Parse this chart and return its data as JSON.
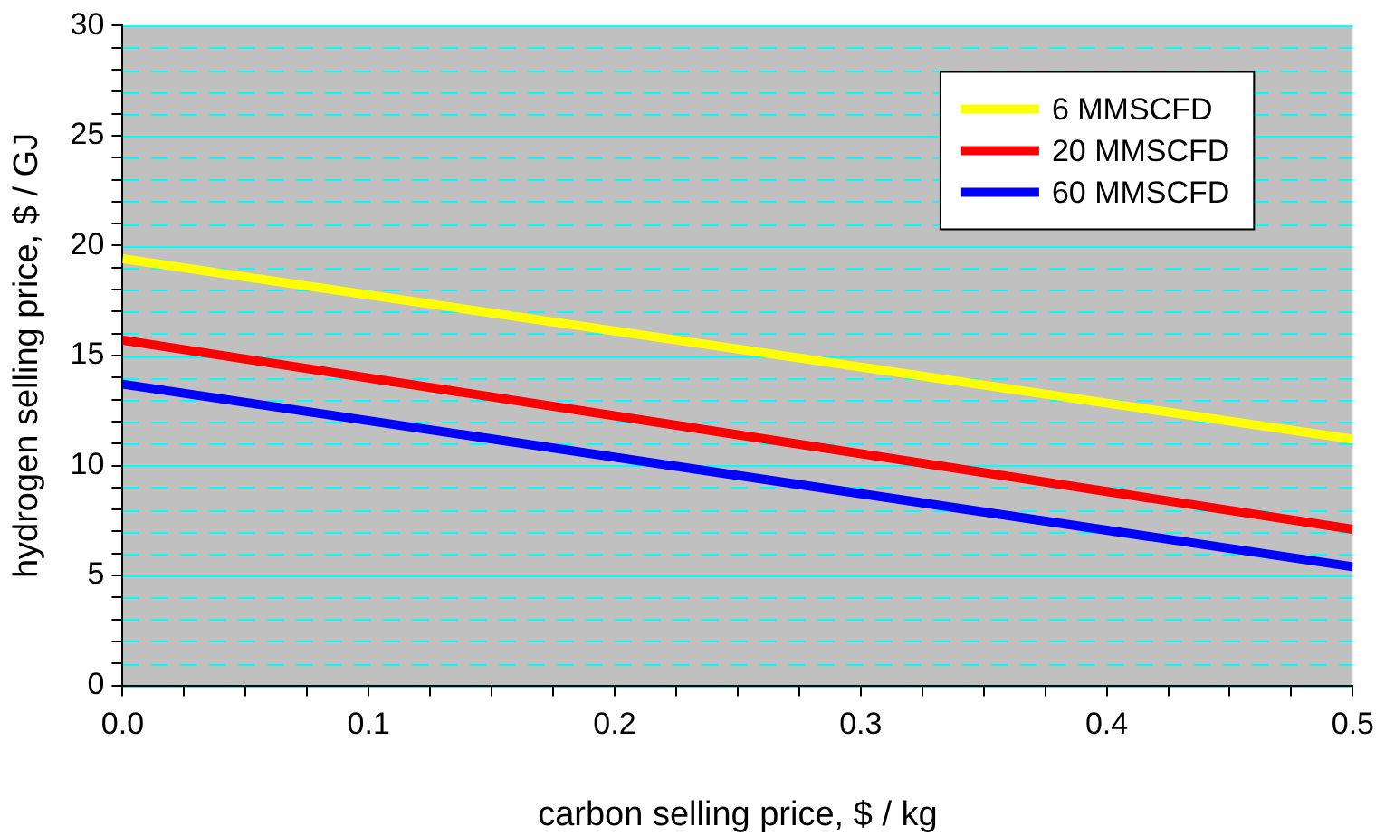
{
  "chart_data": {
    "type": "line",
    "xlabel": "carbon selling price, $ / kg",
    "ylabel": "hydrogen selling price, $ / GJ",
    "x": [
      0,
      0.5
    ],
    "series": [
      {
        "name": "6 MMSCFD",
        "color": "#ffff00",
        "values": [
          19.4,
          11.2
        ]
      },
      {
        "name": "20 MMSCFD",
        "color": "#ff0000",
        "values": [
          15.7,
          7.1
        ]
      },
      {
        "name": "60 MMSCFD",
        "color": "#0000ff",
        "values": [
          13.7,
          5.4
        ]
      }
    ],
    "xlim": [
      0,
      0.5
    ],
    "xticks": [
      {
        "value": 0,
        "label": "0.0"
      },
      {
        "value": 0.025,
        "label": null
      },
      {
        "value": 0.05,
        "label": null
      },
      {
        "value": 0.075,
        "label": null
      },
      {
        "value": 0.1,
        "label": "0.1"
      },
      {
        "value": 0.125,
        "label": null
      },
      {
        "value": 0.15,
        "label": null
      },
      {
        "value": 0.175,
        "label": null
      },
      {
        "value": 0.2,
        "label": "0.2"
      },
      {
        "value": 0.225,
        "label": null
      },
      {
        "value": 0.25,
        "label": null
      },
      {
        "value": 0.275,
        "label": null
      },
      {
        "value": 0.3,
        "label": "0.3"
      },
      {
        "value": 0.325,
        "label": null
      },
      {
        "value": 0.35,
        "label": null
      },
      {
        "value": 0.375,
        "label": null
      },
      {
        "value": 0.4,
        "label": "0.4"
      },
      {
        "value": 0.425,
        "label": null
      },
      {
        "value": 0.45,
        "label": null
      },
      {
        "value": 0.475,
        "label": null
      },
      {
        "value": 0.5,
        "label": "0.5"
      }
    ],
    "ylim": [
      0,
      30
    ],
    "yticks": [
      0,
      {
        "value": 1,
        "label": null
      },
      {
        "value": 2,
        "label": null
      },
      {
        "value": 3,
        "label": null
      },
      {
        "value": 4,
        "label": null
      },
      5,
      {
        "value": 6,
        "label": null
      },
      {
        "value": 7,
        "label": null
      },
      {
        "value": 8,
        "label": null
      },
      {
        "value": 9,
        "label": null
      },
      10,
      {
        "value": 11,
        "label": null
      },
      {
        "value": 12,
        "label": null
      },
      {
        "value": 13,
        "label": null
      },
      {
        "value": 14,
        "label": null
      },
      15,
      {
        "value": 16,
        "label": null
      },
      {
        "value": 17,
        "label": null
      },
      {
        "value": 18,
        "label": null
      },
      {
        "value": 19,
        "label": null
      },
      20,
      {
        "value": 21,
        "label": null
      },
      {
        "value": 22,
        "label": null
      },
      {
        "value": 23,
        "label": null
      },
      {
        "value": 24,
        "label": null
      },
      25,
      {
        "value": 26,
        "label": null
      },
      {
        "value": 27,
        "label": null
      },
      {
        "value": 28,
        "label": null
      },
      {
        "value": 29,
        "label": null
      },
      30
    ],
    "grid": "y",
    "legend": "top right",
    "marker": "none",
    "line_style": "solid"
  }
}
